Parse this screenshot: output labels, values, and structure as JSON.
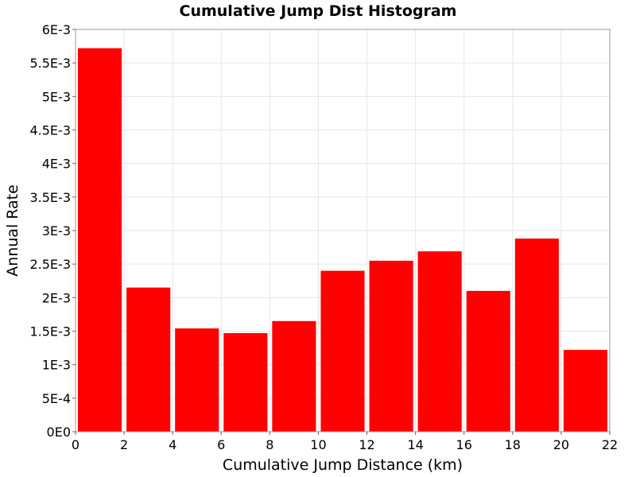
{
  "chart_data": {
    "type": "bar",
    "title": "Cumulative Jump Dist Histogram",
    "xlabel": "Cumulative Jump Distance (km)",
    "ylabel": "Annual Rate",
    "xlim": [
      0,
      22
    ],
    "ylim": [
      0,
      0.006
    ],
    "x_ticks": [
      0,
      2,
      4,
      6,
      8,
      10,
      12,
      14,
      16,
      18,
      20,
      22
    ],
    "x_tick_labels": [
      "0",
      "2",
      "4",
      "6",
      "8",
      "10",
      "12",
      "14",
      "16",
      "18",
      "20",
      "22"
    ],
    "y_ticks": [
      0,
      0.0005,
      0.001,
      0.0015,
      0.002,
      0.0025,
      0.003,
      0.0035,
      0.004,
      0.0045,
      0.005,
      0.0055,
      0.006
    ],
    "y_tick_labels": [
      "0E0",
      "5E-4",
      "1E-3",
      "1.5E-3",
      "2E-3",
      "2.5E-3",
      "3E-3",
      "3.5E-3",
      "4E-3",
      "4.5E-3",
      "5E-3",
      "5.5E-3",
      "6E-3"
    ],
    "grid": true,
    "bar_color": "#ff0000",
    "bins": [
      {
        "x0": 0,
        "x1": 2,
        "value": 0.00572
      },
      {
        "x0": 2,
        "x1": 4,
        "value": 0.00215
      },
      {
        "x0": 4,
        "x1": 6,
        "value": 0.00154
      },
      {
        "x0": 6,
        "x1": 8,
        "value": 0.00147
      },
      {
        "x0": 8,
        "x1": 10,
        "value": 0.00165
      },
      {
        "x0": 10,
        "x1": 12,
        "value": 0.0024
      },
      {
        "x0": 12,
        "x1": 14,
        "value": 0.00255
      },
      {
        "x0": 14,
        "x1": 16,
        "value": 0.00269
      },
      {
        "x0": 16,
        "x1": 18,
        "value": 0.0021
      },
      {
        "x0": 18,
        "x1": 20,
        "value": 0.00288
      },
      {
        "x0": 20,
        "x1": 22,
        "value": 0.00122
      }
    ]
  }
}
